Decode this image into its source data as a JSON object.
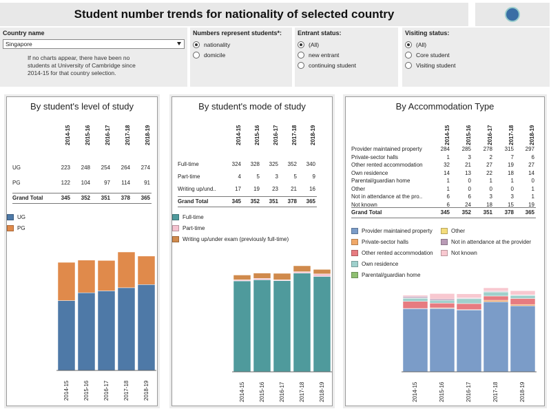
{
  "header": {
    "title": "Student number trends for nationality of selected country"
  },
  "filters": {
    "country": {
      "label": "Country name",
      "value": "Singapore",
      "note": [
        "If no charts appear, there have been no",
        "students at University of Cambridge since",
        "2014-15 for that country selection."
      ]
    },
    "numbers": {
      "label": "Numbers represent students*:",
      "options": [
        "nationality",
        "domicile"
      ],
      "selected": 0
    },
    "entrant": {
      "label": "Entrant status:",
      "options": [
        "(All)",
        "new entrant",
        "continuing student"
      ],
      "selected": 0
    },
    "visiting": {
      "label": "Visiting status:",
      "options": [
        "(All)",
        "Core student",
        "Visiting student"
      ],
      "selected": 0
    }
  },
  "years": [
    "2014-15",
    "2015-16",
    "2016-17",
    "2017-18",
    "2018-19"
  ],
  "level": {
    "title": "By student's level of study",
    "rows": [
      {
        "label": "UG",
        "values": [
          "223",
          "248",
          "254",
          "264",
          "274"
        ]
      },
      {
        "label": "PG",
        "values": [
          "122",
          "104",
          "97",
          "114",
          "91"
        ]
      }
    ],
    "total": {
      "label": "Grand Total",
      "values": [
        "345",
        "352",
        "351",
        "378",
        "365"
      ]
    },
    "legend": [
      {
        "label": "UG",
        "color": "#4e79a7"
      },
      {
        "label": "PG",
        "color": "#e08a4b"
      }
    ]
  },
  "mode": {
    "title": "By student's mode of study",
    "rows": [
      {
        "label": "Full-time",
        "values": [
          "324",
          "328",
          "325",
          "352",
          "340"
        ]
      },
      {
        "label": "Part-time",
        "values": [
          "4",
          "5",
          "3",
          "5",
          "9"
        ]
      },
      {
        "label": "Writing up/und..",
        "values": [
          "17",
          "19",
          "23",
          "21",
          "16"
        ]
      }
    ],
    "total": {
      "label": "Grand Total",
      "values": [
        "345",
        "352",
        "351",
        "378",
        "365"
      ]
    },
    "legend": [
      {
        "label": "Full-time",
        "color": "#4f9a9c"
      },
      {
        "label": "Part-time",
        "color": "#f5c3d0"
      },
      {
        "label": "Writing up/under exam (previously full-time)",
        "color": "#d08a4c"
      }
    ]
  },
  "accom": {
    "title": "By Accommodation Type",
    "rows": [
      {
        "label": "Provider maintained property",
        "values": [
          "284",
          "285",
          "278",
          "315",
          "297"
        ]
      },
      {
        "label": "Private-sector halls",
        "values": [
          "1",
          "3",
          "2",
          "7",
          "6"
        ]
      },
      {
        "label": "Other rented accommodation",
        "values": [
          "32",
          "21",
          "27",
          "19",
          "27"
        ]
      },
      {
        "label": "Own residence",
        "values": [
          "14",
          "13",
          "22",
          "18",
          "14"
        ]
      },
      {
        "label": "Parental/guardian home",
        "values": [
          "1",
          "0",
          "1",
          "1",
          "0"
        ]
      },
      {
        "label": "Other",
        "values": [
          "1",
          "0",
          "0",
          "0",
          "1"
        ]
      },
      {
        "label": "Not in attendance at the pro..",
        "values": [
          "6",
          "6",
          "3",
          "3",
          "1"
        ]
      },
      {
        "label": "Not known",
        "values": [
          "6",
          "24",
          "18",
          "15",
          "19"
        ]
      }
    ],
    "total": {
      "label": "Grand Total",
      "values": [
        "345",
        "352",
        "351",
        "378",
        "365"
      ]
    },
    "legend": [
      {
        "label": "Provider maintained property",
        "color": "#7b9cc8"
      },
      {
        "label": "Private-sector halls",
        "color": "#f0a868"
      },
      {
        "label": "Other rented accommodation",
        "color": "#e77b80"
      },
      {
        "label": "Own residence",
        "color": "#9fd0cc"
      },
      {
        "label": "Parental/guardian home",
        "color": "#8fbf72"
      },
      {
        "label": "Other",
        "color": "#f4dc7c"
      },
      {
        "label": "Not in attendance at the provider",
        "color": "#b99bb6"
      },
      {
        "label": "Not known",
        "color": "#f8c8d0"
      }
    ]
  },
  "chart_data": [
    {
      "type": "bar",
      "title": "By student's level of study",
      "categories": [
        "2014-15",
        "2015-16",
        "2016-17",
        "2017-18",
        "2018-19"
      ],
      "series": [
        {
          "name": "UG",
          "values": [
            223,
            248,
            254,
            264,
            274
          ]
        },
        {
          "name": "PG",
          "values": [
            122,
            104,
            97,
            114,
            91
          ]
        }
      ],
      "stacked": true
    },
    {
      "type": "bar",
      "title": "By student's mode of study",
      "categories": [
        "2014-15",
        "2015-16",
        "2016-17",
        "2017-18",
        "2018-19"
      ],
      "series": [
        {
          "name": "Full-time",
          "values": [
            324,
            328,
            325,
            352,
            340
          ]
        },
        {
          "name": "Part-time",
          "values": [
            4,
            5,
            3,
            5,
            9
          ]
        },
        {
          "name": "Writing up/under exam (previously full-time)",
          "values": [
            17,
            19,
            23,
            21,
            16
          ]
        }
      ],
      "stacked": true
    },
    {
      "type": "bar",
      "title": "By Accommodation Type",
      "categories": [
        "2014-15",
        "2015-16",
        "2016-17",
        "2017-18",
        "2018-19"
      ],
      "series": [
        {
          "name": "Provider maintained property",
          "values": [
            284,
            285,
            278,
            315,
            297
          ]
        },
        {
          "name": "Private-sector halls",
          "values": [
            1,
            3,
            2,
            7,
            6
          ]
        },
        {
          "name": "Other rented accommodation",
          "values": [
            32,
            21,
            27,
            19,
            27
          ]
        },
        {
          "name": "Own residence",
          "values": [
            14,
            13,
            22,
            18,
            14
          ]
        },
        {
          "name": "Parental/guardian home",
          "values": [
            1,
            0,
            1,
            1,
            0
          ]
        },
        {
          "name": "Other",
          "values": [
            1,
            0,
            0,
            0,
            1
          ]
        },
        {
          "name": "Not in attendance at the provider",
          "values": [
            6,
            6,
            3,
            3,
            1
          ]
        },
        {
          "name": "Not known",
          "values": [
            6,
            24,
            18,
            15,
            19
          ]
        }
      ],
      "stacked": true
    }
  ]
}
